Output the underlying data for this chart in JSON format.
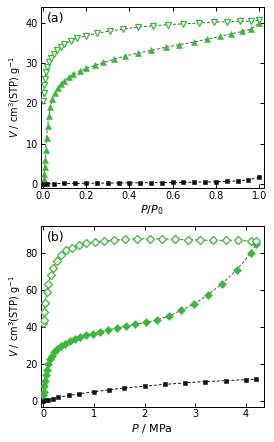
{
  "panel_a": {
    "label": "(a)",
    "xlabel": "$P/P_0$",
    "ylabel": "$V$ / cm$^3$(STP) g$^{-1}$",
    "xlim": [
      -0.01,
      1.02
    ],
    "ylim": [
      -1,
      44
    ],
    "yticks": [
      0,
      10,
      20,
      30,
      40
    ],
    "xticks": [
      0.0,
      0.2,
      0.4,
      0.6,
      0.8,
      1.0
    ],
    "co2_ads_x": [
      0.002,
      0.004,
      0.006,
      0.008,
      0.01,
      0.013,
      0.017,
      0.022,
      0.028,
      0.035,
      0.044,
      0.055,
      0.068,
      0.083,
      0.1,
      0.12,
      0.14,
      0.17,
      0.2,
      0.24,
      0.28,
      0.33,
      0.38,
      0.44,
      0.5,
      0.57,
      0.63,
      0.7,
      0.76,
      0.82,
      0.87,
      0.92,
      0.96,
      1.0
    ],
    "co2_ads_y": [
      0.5,
      1.2,
      2.5,
      4.2,
      6.0,
      8.5,
      11.5,
      14.5,
      17.0,
      19.2,
      21.0,
      22.5,
      23.8,
      24.8,
      25.7,
      26.5,
      27.2,
      28.0,
      28.7,
      29.5,
      30.2,
      31.0,
      31.8,
      32.5,
      33.2,
      34.0,
      34.6,
      35.3,
      36.0,
      36.7,
      37.3,
      37.9,
      38.5,
      40.0
    ],
    "co2_des_x": [
      0.002,
      0.004,
      0.007,
      0.01,
      0.015,
      0.02,
      0.028,
      0.037,
      0.05,
      0.065,
      0.082,
      0.1,
      0.13,
      0.16,
      0.2,
      0.25,
      0.31,
      0.37,
      0.44,
      0.51,
      0.58,
      0.65,
      0.72,
      0.79,
      0.85,
      0.91,
      0.96,
      1.0
    ],
    "co2_des_y": [
      20.5,
      22.5,
      24.5,
      26.0,
      27.8,
      29.0,
      30.2,
      31.2,
      32.2,
      33.2,
      34.0,
      34.8,
      35.5,
      36.2,
      36.8,
      37.5,
      38.0,
      38.5,
      39.0,
      39.3,
      39.6,
      39.8,
      40.0,
      40.2,
      40.3,
      40.4,
      40.5,
      40.7
    ],
    "n2_x": [
      0.0,
      0.02,
      0.05,
      0.1,
      0.15,
      0.2,
      0.25,
      0.3,
      0.35,
      0.4,
      0.45,
      0.5,
      0.55,
      0.6,
      0.65,
      0.7,
      0.75,
      0.8,
      0.85,
      0.9,
      0.95,
      1.0
    ],
    "n2_y": [
      0.0,
      0.05,
      0.08,
      0.1,
      0.12,
      0.15,
      0.17,
      0.2,
      0.22,
      0.25,
      0.27,
      0.3,
      0.32,
      0.35,
      0.38,
      0.42,
      0.46,
      0.52,
      0.6,
      0.75,
      1.0,
      1.6
    ],
    "co2_color": "#3ab83a",
    "n2_color": "#111111",
    "line_color": "#555555"
  },
  "panel_b": {
    "label": "(b)",
    "xlabel": "$P$ / MPa",
    "ylabel": "$V$ / cm$^3$(STP) g$^{-1}$",
    "xlim": [
      -0.05,
      4.35
    ],
    "ylim": [
      -3,
      95
    ],
    "yticks": [
      0,
      20,
      40,
      60,
      80
    ],
    "xticks": [
      0,
      1,
      2,
      3,
      4
    ],
    "co2_ads_x": [
      0.005,
      0.01,
      0.02,
      0.03,
      0.05,
      0.07,
      0.1,
      0.13,
      0.17,
      0.22,
      0.28,
      0.35,
      0.43,
      0.52,
      0.62,
      0.73,
      0.85,
      0.98,
      1.12,
      1.28,
      1.45,
      1.63,
      1.82,
      2.03,
      2.25,
      2.48,
      2.72,
      2.98,
      3.25,
      3.53,
      3.82,
      4.1,
      4.2
    ],
    "co2_ads_y": [
      3.0,
      5.0,
      8.0,
      11.0,
      14.0,
      17.0,
      20.0,
      22.5,
      24.5,
      26.5,
      28.0,
      29.5,
      31.0,
      32.5,
      33.5,
      34.5,
      35.5,
      36.5,
      37.5,
      38.5,
      39.5,
      40.5,
      41.5,
      42.5,
      44.0,
      46.0,
      49.0,
      52.5,
      57.5,
      63.5,
      71.0,
      80.0,
      85.0
    ],
    "co2_des_x": [
      0.005,
      0.01,
      0.02,
      0.04,
      0.07,
      0.1,
      0.15,
      0.2,
      0.27,
      0.35,
      0.45,
      0.57,
      0.7,
      0.85,
      1.02,
      1.2,
      1.4,
      1.62,
      1.85,
      2.1,
      2.35,
      2.6,
      2.85,
      3.1,
      3.35,
      3.6,
      3.85,
      4.1,
      4.2
    ],
    "co2_des_y": [
      42.0,
      44.0,
      48.0,
      53.0,
      59.0,
      63.5,
      68.0,
      72.0,
      76.0,
      79.0,
      81.5,
      83.0,
      84.5,
      85.5,
      86.0,
      86.5,
      87.0,
      87.5,
      87.8,
      87.8,
      87.8,
      87.5,
      87.3,
      87.2,
      87.0,
      87.0,
      87.0,
      86.5,
      86.5
    ],
    "n2_x": [
      0.0,
      0.05,
      0.1,
      0.2,
      0.3,
      0.5,
      0.7,
      1.0,
      1.3,
      1.6,
      2.0,
      2.4,
      2.8,
      3.2,
      3.6,
      4.0,
      4.2
    ],
    "n2_y": [
      0.0,
      0.3,
      0.7,
      1.3,
      2.0,
      3.0,
      3.8,
      5.0,
      6.0,
      7.0,
      8.0,
      9.0,
      9.8,
      10.5,
      11.0,
      11.5,
      11.8
    ],
    "co2_color": "#3ab83a",
    "n2_color": "#111111",
    "line_color": "#555555"
  }
}
